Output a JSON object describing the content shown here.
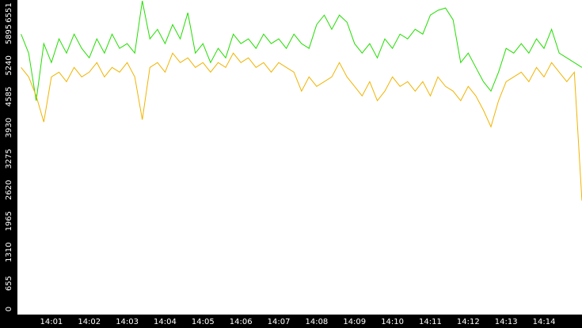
{
  "chart_data": {
    "type": "line",
    "categories": [
      null,
      null,
      null,
      null,
      "14:01",
      null,
      null,
      null,
      null,
      "14:02",
      null,
      null,
      null,
      null,
      "14:03",
      null,
      null,
      null,
      null,
      "14:04",
      null,
      null,
      null,
      null,
      "14:05",
      null,
      null,
      null,
      null,
      "14:06",
      null,
      null,
      null,
      null,
      "14:07",
      null,
      null,
      null,
      null,
      "14:08",
      null,
      null,
      null,
      null,
      "14:09",
      null,
      null,
      null,
      null,
      "14:10",
      null,
      null,
      null,
      null,
      "14:11",
      null,
      null,
      null,
      null,
      "14:12",
      null,
      null,
      null,
      null,
      "14:13",
      null,
      null,
      null,
      null,
      "14:14",
      null,
      null,
      null,
      null,
      null
    ],
    "series": [
      {
        "color": "#22dd00",
        "values": [
          5900,
          5500,
          4500,
          5700,
          5300,
          5800,
          5500,
          5900,
          5600,
          5400,
          5800,
          5500,
          5900,
          5600,
          5700,
          5500,
          6600,
          5800,
          6000,
          5700,
          6100,
          5800,
          6350,
          5500,
          5700,
          5300,
          5600,
          5400,
          5900,
          5700,
          5800,
          5600,
          5900,
          5700,
          5800,
          5600,
          5900,
          5700,
          5600,
          6100,
          6300,
          6000,
          6300,
          6150,
          5700,
          5500,
          5700,
          5400,
          5800,
          5600,
          5900,
          5800,
          6000,
          5900,
          6300,
          6400,
          6450,
          6200,
          5300,
          5500,
          5200,
          4900,
          4700,
          5100,
          5600,
          5500,
          5700,
          5500,
          5800,
          5600,
          6000,
          5500,
          5400,
          5300,
          5200
        ]
      },
      {
        "color": "#f0b400",
        "values": [
          5200,
          5000,
          4600,
          4050,
          5000,
          5100,
          4900,
          5200,
          5000,
          5100,
          5300,
          5000,
          5200,
          5100,
          5300,
          5000,
          4100,
          5200,
          5300,
          5100,
          5500,
          5300,
          5400,
          5200,
          5300,
          5100,
          5300,
          5200,
          5500,
          5300,
          5400,
          5200,
          5300,
          5100,
          5300,
          5200,
          5100,
          4700,
          5000,
          4800,
          4900,
          5000,
          5300,
          5000,
          4800,
          4600,
          4900,
          4500,
          4700,
          5000,
          4800,
          4900,
          4700,
          4900,
          4600,
          5000,
          4800,
          4700,
          4500,
          4800,
          4600,
          4300,
          3950,
          4500,
          4900,
          5000,
          5100,
          4900,
          5200,
          5000,
          5300,
          5100,
          4900,
          5100,
          2400
        ]
      }
    ],
    "ylim": [
      0,
      6551
    ],
    "yticks": [
      0,
      655,
      1310,
      1965,
      2620,
      3275,
      3930,
      4585,
      5240,
      5895,
      6551
    ]
  }
}
